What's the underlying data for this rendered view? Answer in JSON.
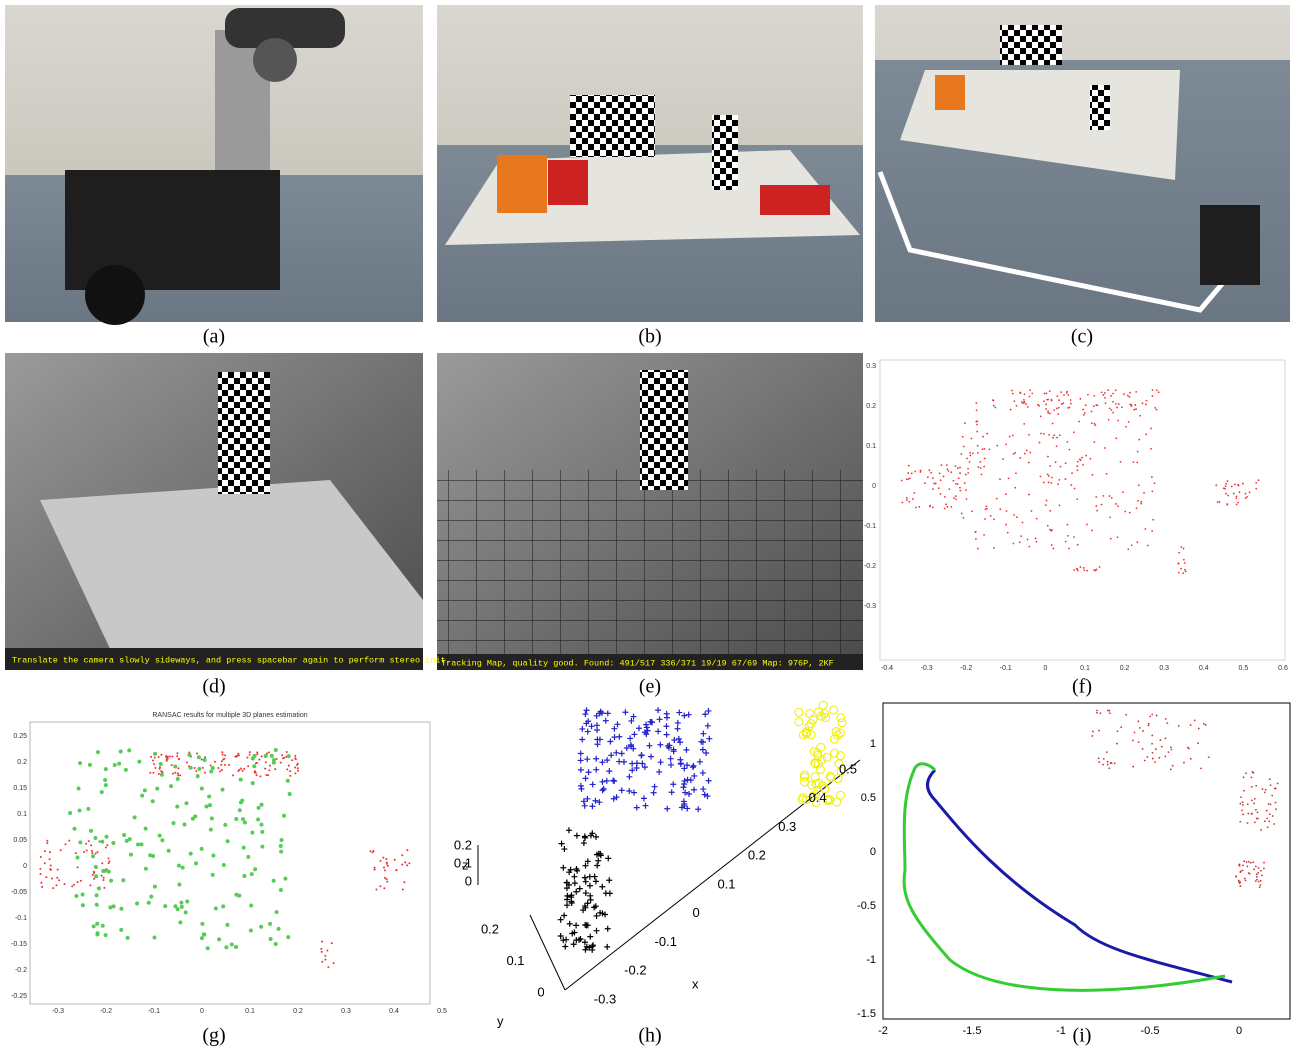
{
  "captions": [
    "(a)",
    "(b)",
    "(c)",
    "(d)",
    "(e)",
    "(f)",
    "(g)",
    "(h)",
    "(i)"
  ],
  "panel_d": {
    "overlay": "Translate the camera slowly sideways, and press spacebar again to perform stereo init."
  },
  "panel_e": {
    "overlay": "Tracking Map, quality good. Found: 491/517 336/371 19/19 67/69 Map: 976P, 2KF"
  },
  "panel_f": {
    "xticks": [
      -0.4,
      -0.3,
      -0.2,
      -0.1,
      0,
      0.1,
      0.2,
      0.3,
      0.4,
      0.5,
      0.6
    ],
    "yticks": [
      0.3,
      0.2,
      0.1,
      0,
      -0.1,
      -0.2,
      -0.3
    ]
  },
  "panel_g": {
    "title": "RANSAC results for multiple 3D planes estimation",
    "xticks": [
      -0.3,
      -0.2,
      -0.1,
      0,
      0.1,
      0.2,
      0.3,
      0.4,
      0.5
    ],
    "yticks": [
      0.25,
      0.2,
      0.15,
      0.1,
      0.05,
      0,
      -0.05,
      -0.1,
      -0.15,
      -0.2,
      -0.25
    ]
  },
  "panel_h": {
    "xlabel": "x",
    "ylabel": "y",
    "zlabel": "z",
    "xticks": [
      -0.3,
      -0.2,
      -0.1,
      0,
      0.1,
      0.2,
      0.3,
      0.4,
      0.5
    ],
    "yticks": [
      0.2,
      0.1,
      0
    ],
    "zticks": [
      0.2,
      0.1,
      0
    ]
  },
  "panel_i": {
    "xticks": [
      -2,
      -1.5,
      -1,
      -0.5,
      0
    ],
    "yticks": [
      1,
      0.5,
      0,
      -0.5,
      -1,
      -1.5
    ]
  }
}
